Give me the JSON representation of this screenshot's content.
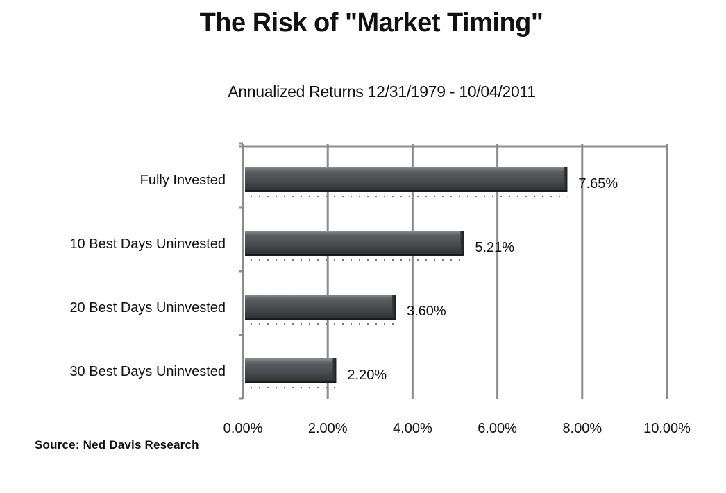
{
  "page": {
    "title": "The Risk of \"Market Timing\"",
    "source": "Source: Ned Davis Research"
  },
  "chart_data": {
    "type": "bar",
    "orientation": "horizontal",
    "title": "The Risk of \"Market Timing\"",
    "subtitle": "Annualized Returns 12/31/1979 - 10/04/2011",
    "xlabel": "",
    "ylabel": "",
    "categories": [
      "Fully Invested",
      "10 Best Days Uninvested",
      "20 Best Days Uninvested",
      "30 Best Days Uninvested"
    ],
    "values": [
      7.65,
      5.21,
      3.6,
      2.2
    ],
    "value_labels": [
      "7.65%",
      "5.21%",
      "3.60%",
      "2.20%"
    ],
    "xlim": [
      0,
      10
    ],
    "x_ticks": [
      0,
      2,
      4,
      6,
      8,
      10
    ],
    "x_tick_labels": [
      "0.00%",
      "2.00%",
      "4.00%",
      "6.00%",
      "8.00%",
      "10.00%"
    ],
    "grid": "vertical",
    "legend": "none",
    "colors": {
      "bar_fill": "#4a4c4f",
      "bar_highlight": "#8a8c8f",
      "gridline": "#8c8c8c",
      "text": "#111111"
    }
  }
}
